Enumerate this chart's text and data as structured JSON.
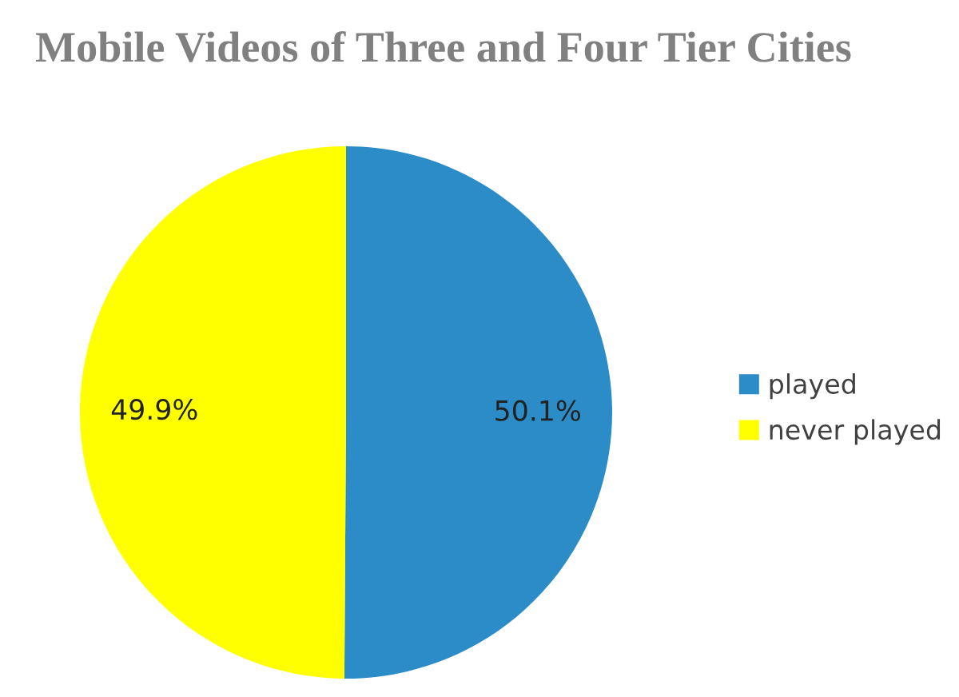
{
  "chart_data": {
    "type": "pie",
    "title": "Mobile Videos of Three and Four Tier Cities",
    "categories": [
      "played",
      "never played"
    ],
    "values": [
      50.1,
      49.9
    ],
    "colors": [
      "#2b8cc8",
      "#ffff00"
    ],
    "value_labels": [
      "50.1%",
      "49.9%"
    ],
    "legend": "right"
  }
}
